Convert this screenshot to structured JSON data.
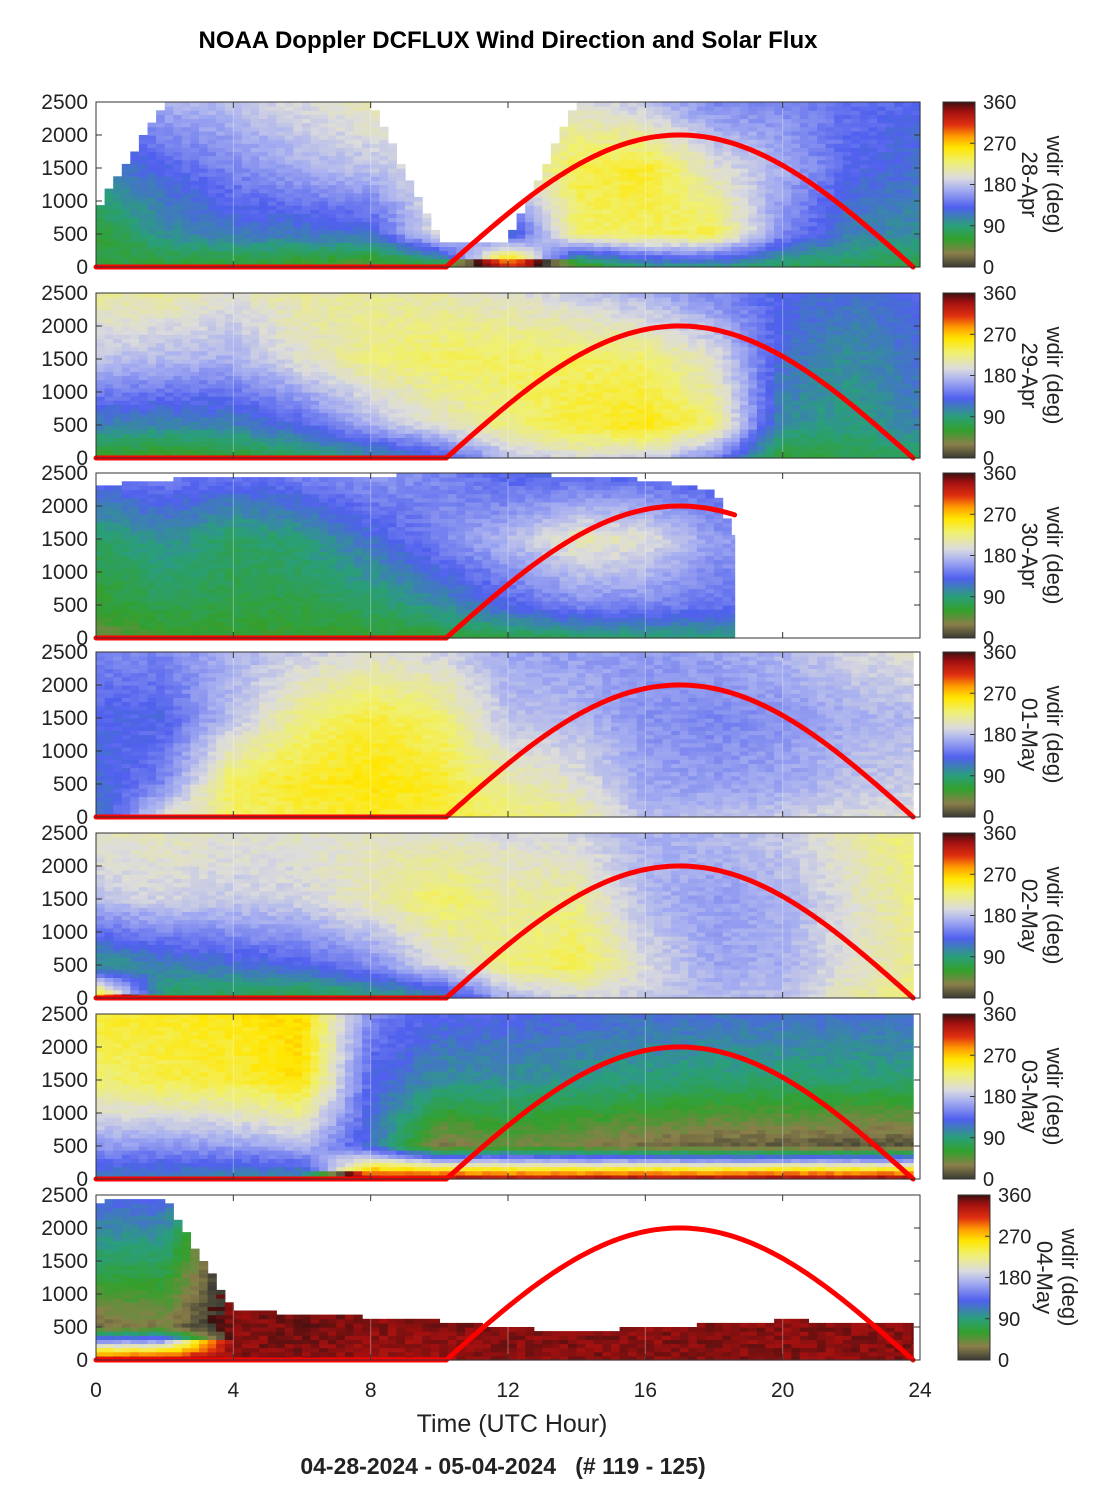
{
  "figure": {
    "title": "NOAA Doppler DCFLUX Wind Direction and Solar Flux",
    "xlabel": "Time (UTC Hour)",
    "subtitle": "04-28-2024 - 05-04-2024   (# 119 - 125)"
  },
  "chart_data": {
    "type": "heatmap",
    "x_range": [
      0,
      24
    ],
    "x_ticks": [
      "0",
      "4",
      "8",
      "12",
      "16",
      "20",
      "24"
    ],
    "y_range": [
      0,
      2500
    ],
    "y_ticks": [
      "0",
      "500",
      "1000",
      "1500",
      "2000",
      "2500"
    ],
    "colorbar": {
      "label": "wdir (deg)",
      "range": [
        0,
        360
      ],
      "ticks": [
        "0",
        "90",
        "180",
        "270",
        "360"
      ],
      "stops": [
        [
          0,
          "#3a3a33"
        ],
        [
          30,
          "#8a7f4a"
        ],
        [
          60,
          "#33a02c"
        ],
        [
          90,
          "#2a9f7a"
        ],
        [
          130,
          "#5060ee"
        ],
        [
          170,
          "#a8b0f0"
        ],
        [
          195,
          "#dcdcdc"
        ],
        [
          230,
          "#f0f070"
        ],
        [
          260,
          "#ffe600"
        ],
        [
          285,
          "#ff9c00"
        ],
        [
          310,
          "#e03010"
        ],
        [
          340,
          "#a01010"
        ],
        [
          360,
          "#3a1010"
        ]
      ]
    },
    "solar_flux_curve": {
      "color": "#ff0000",
      "start_hour": 10.2,
      "peak_hour": 17.0,
      "peak_value": 2000,
      "end_hour": 23.8
    },
    "panels": [
      {
        "date": "28-Apr",
        "data_end": 24,
        "key_hours": [
          0,
          2,
          4,
          6,
          8,
          10,
          12,
          14,
          16,
          18,
          20,
          22,
          24
        ],
        "key_dirs": [
          [
            70,
            60,
            110,
            130
          ],
          [
            60,
            100,
            130,
            170
          ],
          [
            55,
            115,
            150,
            180
          ],
          [
            50,
            115,
            170,
            195
          ],
          [
            40,
            120,
            180,
            210
          ],
          [
            60,
            200,
            200,
            200
          ],
          [
            320,
            110,
            195,
            200
          ],
          [
            40,
            230,
            240,
            200
          ],
          [
            90,
            235,
            250,
            180
          ],
          [
            90,
            240,
            200,
            150
          ],
          [
            75,
            150,
            170,
            150
          ],
          [
            75,
            110,
            130,
            140
          ],
          [
            70,
            100,
            120,
            130
          ]
        ],
        "top_profile": [
          850,
          2500,
          2500,
          2500,
          2500,
          400,
          400,
          2500,
          2500,
          2500,
          2500,
          2500,
          2500
        ],
        "top_min": 0
      },
      {
        "date": "29-Apr",
        "data_end": 24,
        "key_hours": [
          0,
          2,
          4,
          6,
          8,
          10,
          12,
          14,
          16,
          18,
          20,
          22,
          24
        ],
        "key_dirs": [
          [
            55,
            110,
            180,
            215
          ],
          [
            50,
            105,
            175,
            215
          ],
          [
            60,
            110,
            170,
            200
          ],
          [
            75,
            130,
            200,
            215
          ],
          [
            95,
            170,
            225,
            215
          ],
          [
            120,
            200,
            235,
            210
          ],
          [
            175,
            225,
            235,
            200
          ],
          [
            195,
            245,
            235,
            185
          ],
          [
            190,
            255,
            230,
            170
          ],
          [
            150,
            230,
            200,
            150
          ],
          [
            60,
            100,
            120,
            130
          ],
          [
            75,
            90,
            100,
            120
          ],
          [
            80,
            110,
            120,
            130
          ]
        ],
        "top_min": 2500
      },
      {
        "date": "30-Apr",
        "data_end": 18.6,
        "key_hours": [
          0,
          2,
          4,
          6,
          8,
          10,
          12,
          14,
          16,
          18,
          20,
          22,
          24
        ],
        "key_dirs": [
          [
            40,
            60,
            80,
            140
          ],
          [
            55,
            75,
            100,
            150
          ],
          [
            60,
            70,
            80,
            140
          ],
          [
            60,
            70,
            90,
            150
          ],
          [
            60,
            80,
            120,
            160
          ],
          [
            65,
            100,
            150,
            150
          ],
          [
            70,
            130,
            175,
            130
          ],
          [
            80,
            150,
            210,
            130
          ],
          [
            85,
            150,
            200,
            130
          ],
          [
            90,
            140,
            160,
            125
          ],
          [
            90,
            140,
            160,
            125
          ],
          [
            90,
            140,
            160,
            125
          ],
          [
            90,
            140,
            160,
            125
          ]
        ],
        "top_profile": [
          2300,
          2400,
          2450,
          2450,
          2450,
          2500,
          2500,
          2450,
          2400,
          2250,
          0,
          0,
          0
        ],
        "top_min": 2200
      },
      {
        "date": "01-May",
        "data_end": 23.8,
        "key_hours": [
          0,
          2,
          4,
          6,
          8,
          10,
          12,
          14,
          16,
          18,
          20,
          22,
          24
        ],
        "key_dirs": [
          [
            110,
            120,
            130,
            150
          ],
          [
            200,
            150,
            130,
            150
          ],
          [
            230,
            240,
            180,
            170
          ],
          [
            240,
            250,
            225,
            185
          ],
          [
            250,
            258,
            245,
            200
          ],
          [
            245,
            250,
            230,
            190
          ],
          [
            230,
            215,
            180,
            165
          ],
          [
            220,
            200,
            175,
            160
          ],
          [
            175,
            165,
            155,
            160
          ],
          [
            180,
            160,
            150,
            165
          ],
          [
            185,
            165,
            155,
            175
          ],
          [
            195,
            180,
            170,
            190
          ],
          [
            200,
            185,
            175,
            200
          ]
        ],
        "top_min": 2150
      },
      {
        "date": "02-May",
        "data_end": 23.8,
        "key_hours": [
          0,
          2,
          4,
          6,
          8,
          10,
          12,
          14,
          16,
          18,
          20,
          22,
          24
        ],
        "key_dirs": [
          [
            280,
            90,
            180,
            205
          ],
          [
            80,
            110,
            190,
            205
          ],
          [
            70,
            120,
            185,
            200
          ],
          [
            65,
            130,
            190,
            200
          ],
          [
            80,
            150,
            210,
            205
          ],
          [
            100,
            195,
            235,
            200
          ],
          [
            170,
            225,
            215,
            195
          ],
          [
            190,
            240,
            220,
            190
          ],
          [
            185,
            195,
            175,
            170
          ],
          [
            175,
            165,
            160,
            175
          ],
          [
            180,
            170,
            170,
            185
          ],
          [
            210,
            200,
            200,
            210
          ],
          [
            230,
            220,
            225,
            230
          ]
        ],
        "top_min": 2300
      },
      {
        "date": "03-May",
        "data_end": 23.8,
        "key_hours": [
          0,
          2,
          4,
          6,
          8,
          10,
          12,
          14,
          16,
          18,
          20,
          22,
          24
        ],
        "key_dirs": [
          [
            110,
            160,
            230,
            245
          ],
          [
            105,
            155,
            240,
            250
          ],
          [
            100,
            160,
            245,
            255
          ],
          [
            95,
            175,
            260,
            265
          ],
          [
            330,
            120,
            130,
            150
          ],
          [
            350,
            25,
            100,
            130
          ],
          [
            345,
            40,
            100,
            130
          ],
          [
            345,
            30,
            95,
            125
          ],
          [
            350,
            20,
            90,
            120
          ],
          [
            350,
            15,
            85,
            120
          ],
          [
            355,
            15,
            85,
            120
          ],
          [
            355,
            10,
            85,
            120
          ],
          [
            355,
            10,
            85,
            120
          ]
        ],
        "top_min": 2100
      },
      {
        "date": "04-May",
        "data_end": 23.8,
        "key_hours": [
          0,
          2,
          4,
          6,
          8,
          10,
          12,
          14,
          16,
          18,
          20,
          22,
          24
        ],
        "key_dirs": [
          [
            340,
            20,
            80,
            130
          ],
          [
            345,
            30,
            80,
            130
          ],
          [
            345,
            345,
            345,
            345
          ],
          [
            345,
            350,
            355,
            350
          ],
          [
            340,
            345,
            350,
            350
          ],
          [
            340,
            345,
            345,
            345
          ],
          [
            345,
            345,
            345,
            345
          ],
          [
            345,
            345,
            345,
            345
          ],
          [
            345,
            345,
            350,
            350
          ],
          [
            345,
            345,
            350,
            350
          ],
          [
            345,
            345,
            345,
            345
          ],
          [
            345,
            345,
            345,
            345
          ],
          [
            345,
            345,
            345,
            345
          ]
        ],
        "top_profile": [
          2400,
          2450,
          750,
          700,
          650,
          600,
          480,
          450,
          480,
          550,
          600,
          580,
          550
        ],
        "top_min": 400
      }
    ]
  }
}
